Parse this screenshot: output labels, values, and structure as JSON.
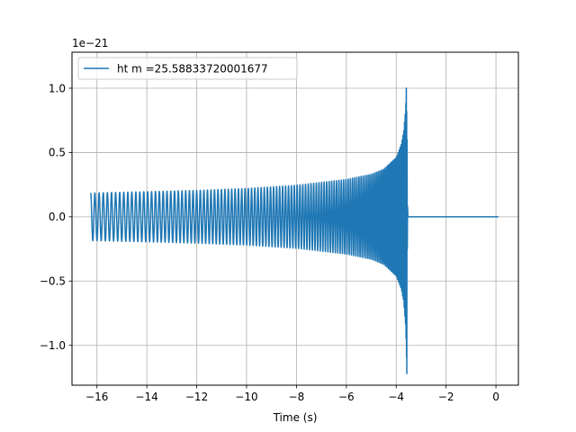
{
  "chart_data": {
    "type": "line",
    "xlabel": "Time (s)",
    "ylabel": "",
    "offset_text": "1e−21",
    "xlim": [
      -17.0,
      0.9
    ],
    "ylim": [
      -1.31,
      1.28
    ],
    "y_scale_factor": 1e-21,
    "x_ticks": [
      {
        "value": -16,
        "label": "−16"
      },
      {
        "value": -14,
        "label": "−14"
      },
      {
        "value": -12,
        "label": "−12"
      },
      {
        "value": -10,
        "label": "−10"
      },
      {
        "value": -8,
        "label": "−8"
      },
      {
        "value": -6,
        "label": "−6"
      },
      {
        "value": -4,
        "label": "−4"
      },
      {
        "value": -2,
        "label": "−2"
      },
      {
        "value": 0,
        "label": "0"
      }
    ],
    "y_ticks": [
      {
        "value": -1.0,
        "label": "−1.0"
      },
      {
        "value": -0.5,
        "label": "−0.5"
      },
      {
        "value": 0.0,
        "label": "0.0"
      },
      {
        "value": 0.5,
        "label": "0.5"
      },
      {
        "value": 1.0,
        "label": "1.0"
      }
    ],
    "grid": true,
    "legend_position": "upper-left",
    "series": [
      {
        "name": "ht m =25.58833720001677",
        "color": "#1f77b4",
        "description_points": {
          "t_start": -16.25,
          "t_merger": -3.58,
          "t_end": 0.1,
          "envelope_t": [
            -16.25,
            -14,
            -12,
            -10,
            -8,
            -6,
            -5,
            -4.5,
            -4.0,
            -3.8,
            -3.7,
            -3.62,
            -3.59,
            -3.58,
            -3.56,
            -3.5,
            0.1
          ],
          "envelope_amp": [
            0.185,
            0.195,
            0.205,
            0.22,
            0.245,
            0.29,
            0.33,
            0.37,
            0.46,
            0.56,
            0.66,
            0.85,
            1.05,
            1.17,
            0.3,
            0.0,
            0.0
          ],
          "cycles_visible": 120
        }
      }
    ]
  }
}
